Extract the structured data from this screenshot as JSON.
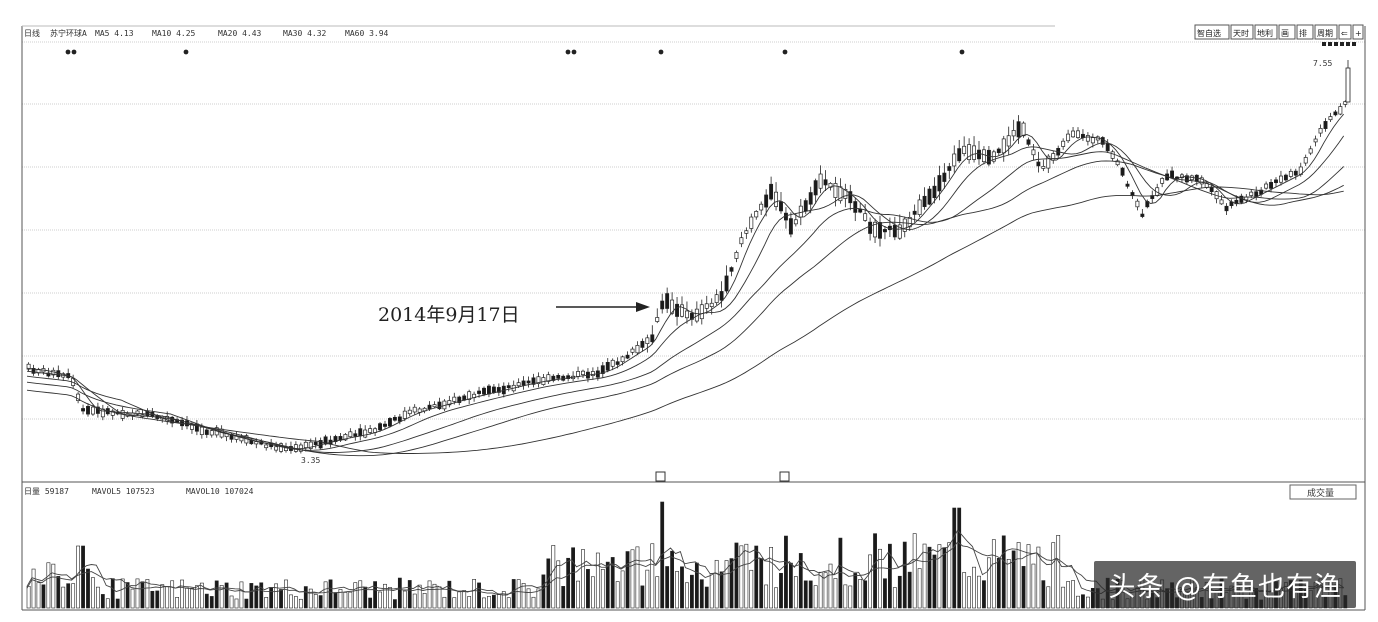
{
  "price_header": {
    "period": "日线",
    "stock": "苏宁环球A",
    "ma5": "MA5  4.13",
    "ma10": "MA10  4.25",
    "ma20": "MA20  4.43",
    "ma30": "MA30  4.32",
    "ma60": "MA60  3.94"
  },
  "toolbar": [
    "智自选",
    "天时",
    "地利",
    "画",
    "排",
    "周期",
    "⇐",
    "+"
  ],
  "volume_header": {
    "label": "日量  59187",
    "mavol5": "MAVOL5  107523",
    "mavol10": "MAVOL10  107024"
  },
  "volume_button": "成交量",
  "annotation": {
    "text": "2014年9月17日"
  },
  "low_label": "3.35",
  "high_label": "7.55",
  "watermark": "头条 @有鱼也有渔",
  "colors": {
    "up": "#ffffff",
    "down": "#1a1a1a",
    "line": "#333333",
    "grid": "#c8c8c8"
  },
  "chart_data": {
    "type": "candlestick",
    "low": 3.35,
    "high": 7.55,
    "series": [
      {
        "name": "MA5"
      },
      {
        "name": "MA10"
      },
      {
        "name": "MA20"
      },
      {
        "name": "MA30"
      },
      {
        "name": "MA60"
      }
    ],
    "volume_series": [
      {
        "name": "MAVOL5"
      },
      {
        "name": "MAVOL10"
      }
    ]
  }
}
